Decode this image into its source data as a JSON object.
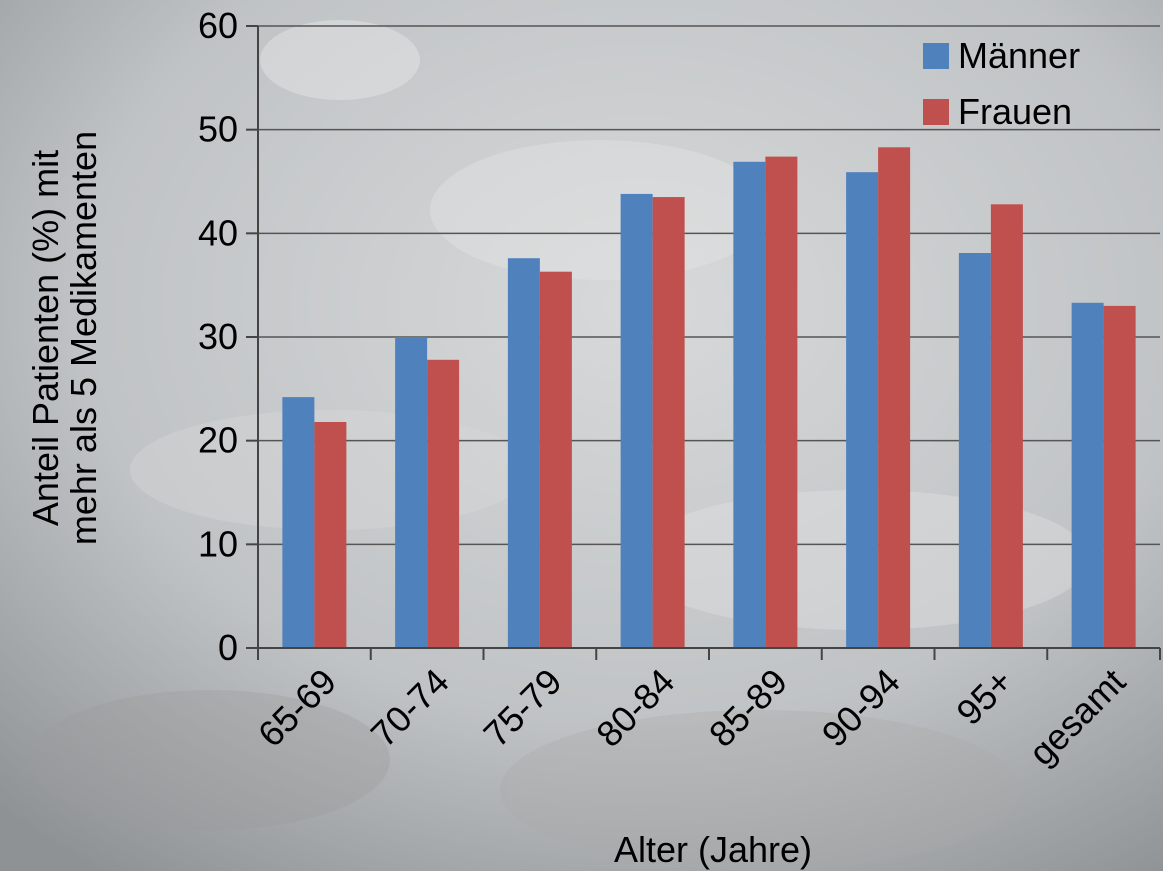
{
  "chart_data": {
    "type": "bar",
    "title": "",
    "xlabel": "Alter (Jahre)",
    "ylabel_lines": [
      "Anteil Patienten (%) mit",
      "mehr als 5 Medikamenten"
    ],
    "categories": [
      "65-69",
      "70-74",
      "75-79",
      "80-84",
      "85-89",
      "90-94",
      "95+",
      "gesamt"
    ],
    "series": [
      {
        "name": "Männer",
        "color": "#4f81bd",
        "values": [
          24.2,
          30.0,
          37.6,
          43.8,
          46.9,
          45.9,
          38.1,
          33.3
        ]
      },
      {
        "name": "Frauen",
        "color": "#c0504d",
        "values": [
          21.8,
          27.8,
          36.3,
          43.5,
          47.4,
          48.3,
          42.8,
          33.0
        ]
      }
    ],
    "ylim": [
      0,
      60
    ],
    "yticks": [
      0,
      10,
      20,
      30,
      40,
      50,
      60
    ],
    "grid": true,
    "legend": "top-right"
  }
}
